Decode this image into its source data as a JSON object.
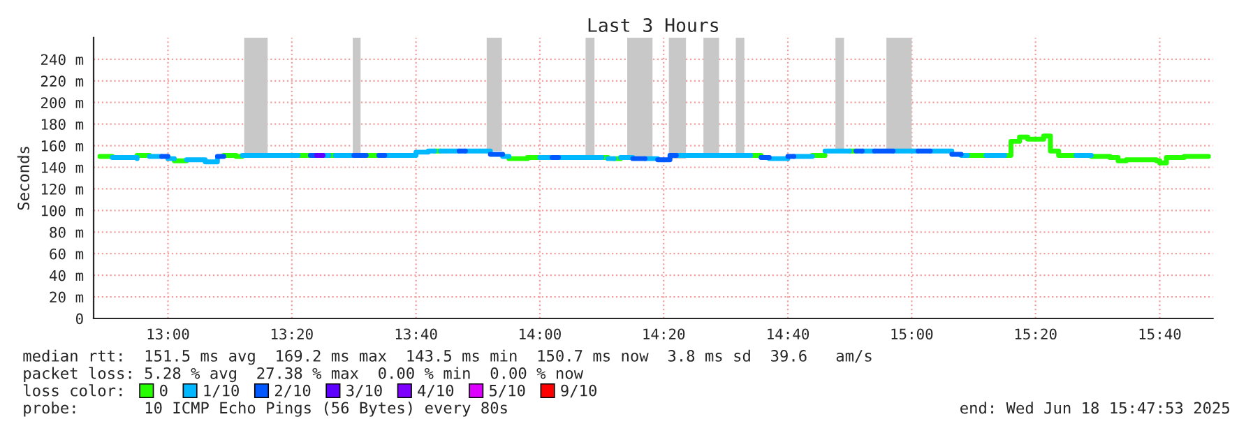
{
  "chart_data": {
    "type": "step",
    "title": "Last 3 Hours",
    "ylabel": "Seconds",
    "legend_title": "loss color:",
    "legend": "bottom",
    "grid": true,
    "line_style": "solid",
    "marker": "none",
    "xlim": [
      12.8,
      15.81
    ],
    "xticks": [
      {
        "value": 13.0,
        "label": "13:00"
      },
      {
        "value": 13.333,
        "label": "13:20"
      },
      {
        "value": 13.667,
        "label": "13:40"
      },
      {
        "value": 14.0,
        "label": "14:00"
      },
      {
        "value": 14.333,
        "label": "14:20"
      },
      {
        "value": 14.667,
        "label": "14:40"
      },
      {
        "value": 15.0,
        "label": "15:00"
      },
      {
        "value": 15.333,
        "label": "15:20"
      },
      {
        "value": 15.667,
        "label": "15:40"
      }
    ],
    "ylim": [
      0,
      260
    ],
    "yticks": [
      0,
      {
        "value": 20,
        "label": "20 m"
      },
      {
        "value": 40,
        "label": "40 m"
      },
      {
        "value": 60,
        "label": "60 m"
      },
      {
        "value": 80,
        "label": "80 m"
      },
      {
        "value": 100,
        "label": "100 m"
      },
      {
        "value": 120,
        "label": "120 m"
      },
      {
        "value": 140,
        "label": "140 m"
      },
      {
        "value": 160,
        "label": "160 m"
      },
      {
        "value": 180,
        "label": "180 m"
      },
      {
        "value": 200,
        "label": "200 m"
      },
      {
        "value": 220,
        "label": "220 m"
      },
      {
        "value": 240,
        "label": "240 m"
      }
    ],
    "series": [
      {
        "name": "0",
        "color": "#26ff00",
        "x": [
          12.817,
          12.85,
          null,
          12.917,
          12.95,
          null,
          13.017,
          13.05,
          null,
          13.15,
          13.183,
          13.2,
          null,
          13.35,
          13.383,
          null,
          13.433,
          13.45,
          null,
          13.533,
          13.567,
          null,
          13.717,
          13.733,
          null,
          13.917,
          13.967,
          14.0,
          null,
          14.167,
          14.183,
          null,
          14.2,
          14.217,
          null,
          14.567,
          14.595,
          null,
          14.733,
          14.767,
          null,
          14.833,
          14.85,
          null,
          15.15,
          15.2,
          null,
          15.25,
          15.267,
          15.29,
          15.312,
          15.355,
          15.373,
          15.395,
          15.442,
          null,
          15.483,
          15.533,
          15.555,
          15.577,
          15.658,
          15.667,
          15.685,
          15.733,
          15.798
        ],
        "values": [
          150,
          150,
          null,
          151,
          151,
          null,
          146,
          146,
          null,
          151,
          150,
          150,
          null,
          151,
          151,
          null,
          151,
          151,
          null,
          151,
          151,
          null,
          155,
          155,
          null,
          148,
          149,
          149,
          null,
          149,
          149,
          null,
          148,
          148,
          null,
          151,
          151,
          null,
          151,
          151,
          null,
          155,
          155,
          null,
          151,
          151,
          null,
          151,
          164,
          168,
          166,
          169,
          155,
          151,
          151,
          null,
          150,
          149,
          146,
          147,
          146,
          144,
          149,
          150,
          150
        ]
      },
      {
        "name": "1/10",
        "color": "#00b8ff",
        "x": [
          12.85,
          12.917,
          null,
          12.95,
          12.983,
          null,
          13.0,
          13.017,
          null,
          13.05,
          13.1,
          13.133,
          null,
          13.2,
          13.35,
          null,
          13.417,
          13.433,
          null,
          13.45,
          13.5,
          null,
          13.583,
          13.667,
          13.7,
          13.717,
          null,
          13.733,
          13.783,
          null,
          13.8,
          13.867,
          null,
          13.9,
          13.917,
          null,
          14.0,
          14.033,
          null,
          14.05,
          14.167,
          null,
          14.183,
          14.2,
          null,
          14.217,
          14.25,
          null,
          14.283,
          14.317,
          null,
          14.367,
          14.567,
          null,
          14.617,
          14.667,
          null,
          14.683,
          14.733,
          null,
          14.767,
          14.833,
          null,
          14.867,
          14.9,
          null,
          14.95,
          15.017,
          null,
          15.05,
          15.108,
          null,
          15.133,
          15.15,
          null,
          15.2,
          15.25,
          null,
          15.442,
          15.483
        ],
        "values": [
          149,
          148,
          null,
          150,
          150,
          null,
          148,
          148,
          null,
          147,
          145,
          148,
          null,
          151,
          151,
          null,
          151,
          151,
          null,
          151,
          151,
          null,
          151,
          154,
          155,
          155,
          null,
          155,
          155,
          null,
          155,
          155,
          null,
          150,
          150,
          null,
          149,
          149,
          null,
          149,
          149,
          null,
          148,
          148,
          null,
          149,
          149,
          null,
          148,
          148,
          null,
          151,
          151,
          null,
          148,
          148,
          null,
          150,
          150,
          null,
          155,
          155,
          null,
          155,
          155,
          null,
          155,
          155,
          null,
          155,
          155,
          null,
          151,
          151,
          null,
          151,
          151,
          null,
          151,
          151
        ]
      },
      {
        "name": "2/10",
        "color": "#0059ff",
        "x": [
          12.983,
          13.0,
          null,
          13.133,
          13.15,
          null,
          13.383,
          13.4,
          null,
          13.5,
          13.533,
          null,
          13.567,
          13.583,
          null,
          13.783,
          13.8,
          null,
          13.867,
          13.9,
          null,
          14.033,
          14.05,
          null,
          14.25,
          14.283,
          null,
          14.317,
          14.35,
          14.367,
          null,
          14.595,
          14.617,
          null,
          14.667,
          14.683,
          null,
          14.85,
          14.867,
          null,
          14.9,
          14.95,
          null,
          15.017,
          15.05,
          null,
          15.108,
          15.133
        ],
        "values": [
          150,
          150,
          null,
          150,
          150,
          null,
          151,
          151,
          null,
          151,
          151,
          null,
          151,
          151,
          null,
          155,
          155,
          null,
          152,
          152,
          null,
          149,
          149,
          null,
          148,
          148,
          null,
          147,
          151,
          151,
          null,
          149,
          149,
          null,
          150,
          150,
          null,
          155,
          155,
          null,
          155,
          155,
          null,
          155,
          155,
          null,
          152,
          152
        ]
      },
      {
        "name": "3/10",
        "color": "#5e00ff",
        "x": [
          13.4,
          13.417
        ],
        "values": [
          151,
          151
        ]
      },
      {
        "name": "4/10",
        "color": "#7e00ff"
      },
      {
        "name": "5/10",
        "color": "#dd00ff"
      },
      {
        "name": "9/10",
        "color": "#ff0000"
      }
    ],
    "bands": [
      {
        "axis": "x",
        "from": 13.205,
        "to": 13.268,
        "color": "#c8c8c8"
      },
      {
        "axis": "x",
        "from": 13.497,
        "to": 13.518,
        "color": "#c8c8c8"
      },
      {
        "axis": "x",
        "from": 13.857,
        "to": 13.898,
        "color": "#c8c8c8"
      },
      {
        "axis": "x",
        "from": 14.123,
        "to": 14.147,
        "color": "#c8c8c8"
      },
      {
        "axis": "x",
        "from": 14.235,
        "to": 14.303,
        "color": "#c8c8c8"
      },
      {
        "axis": "x",
        "from": 14.347,
        "to": 14.393,
        "color": "#c8c8c8"
      },
      {
        "axis": "x",
        "from": 14.44,
        "to": 14.482,
        "color": "#c8c8c8"
      },
      {
        "axis": "x",
        "from": 14.527,
        "to": 14.55,
        "color": "#c8c8c8"
      },
      {
        "axis": "x",
        "from": 14.795,
        "to": 14.818,
        "color": "#c8c8c8"
      },
      {
        "axis": "x",
        "from": 14.932,
        "to": 15.0,
        "color": "#c8c8c8"
      }
    ],
    "annotations": [
      "median rtt:  151.5 ms avg  169.2 ms max  143.5 ms min  150.7 ms now  3.8 ms sd  39.6   am/s",
      "packet loss: 5.28 % avg  27.38 % max  0.00 % min  0.00 % now",
      "probe:       10 ICMP Echo Pings (56 Bytes) every 80s",
      "end: Wed Jun 18 15:47:53 2025"
    ]
  }
}
